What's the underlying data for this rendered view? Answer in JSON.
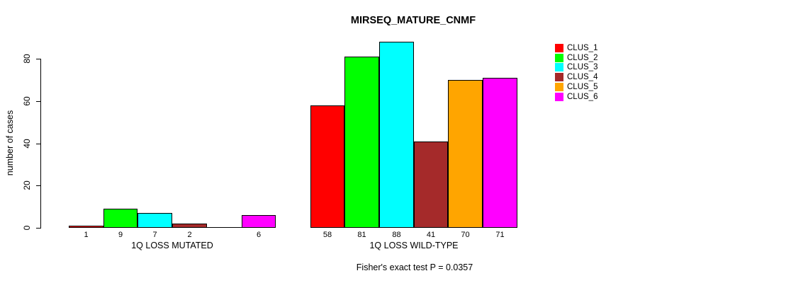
{
  "title": "MIRSEQ_MATURE_CNMF",
  "y_axis": {
    "label": "number of cases",
    "ticks": [
      "0",
      "20",
      "40",
      "60",
      "80"
    ]
  },
  "footer": "Fisher's exact test P = 0.0357",
  "legend": {
    "items": [
      {
        "label": "CLUS_1",
        "color": "#FF0000"
      },
      {
        "label": "CLUS_2",
        "color": "#00FF00"
      },
      {
        "label": "CLUS_3",
        "color": "#00FFFF"
      },
      {
        "label": "CLUS_4",
        "color": "#A52A2A"
      },
      {
        "label": "CLUS_5",
        "color": "#FFA500"
      },
      {
        "label": "CLUS_6",
        "color": "#FF00FF"
      }
    ]
  },
  "chart_data": {
    "type": "bar",
    "title": "MIRSEQ_MATURE_CNMF",
    "xlabel": "",
    "ylabel": "number of cases",
    "ylim": [
      0,
      88
    ],
    "yticks": [
      0,
      20,
      40,
      60,
      80
    ],
    "grid": false,
    "legend_position": "right",
    "annotation": "Fisher's exact test P = 0.0357",
    "clusters": [
      "CLUS_1",
      "CLUS_2",
      "CLUS_3",
      "CLUS_4",
      "CLUS_5",
      "CLUS_6"
    ],
    "colors": [
      "#FF0000",
      "#00FF00",
      "#00FFFF",
      "#A52A2A",
      "#FFA500",
      "#FF00FF"
    ],
    "groups": [
      {
        "label": "1Q LOSS MUTATED",
        "values": [
          1,
          9,
          7,
          2,
          0,
          6
        ],
        "bar_labels": [
          "1",
          "9",
          "7",
          "2",
          "",
          "6"
        ]
      },
      {
        "label": "1Q LOSS WILD-TYPE",
        "values": [
          58,
          81,
          88,
          41,
          70,
          71
        ],
        "bar_labels": [
          "58",
          "81",
          "88",
          "41",
          "70",
          "71"
        ]
      }
    ]
  }
}
